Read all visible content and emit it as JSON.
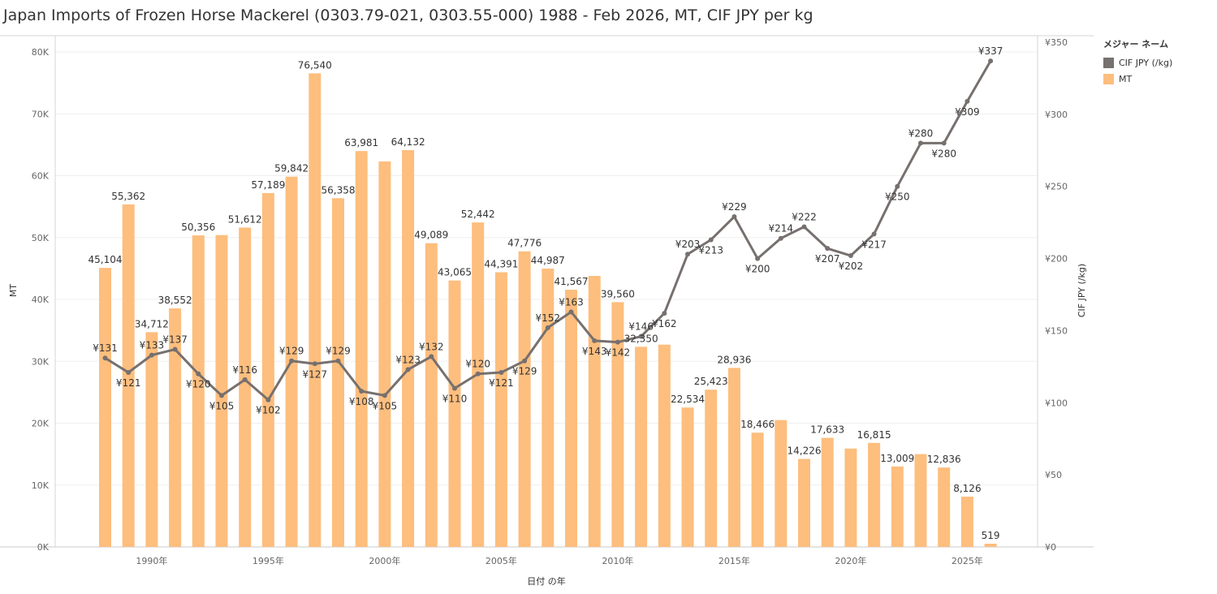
{
  "title": "Japan Imports of Frozen Horse Mackerel (0303.79-021, 0303.55-000) 1988 - Feb 2026, MT, CIF JPY per kg",
  "legend": {
    "title": "メジャー ネーム",
    "items": [
      {
        "label": "CIF JPY (/kg)",
        "color": "#76706E"
      },
      {
        "label": "MT",
        "color": "#FDBE7E"
      }
    ]
  },
  "chart_data": {
    "type": "bar+line",
    "title": "Japan Imports of Frozen Horse Mackerel (0303.79-021, 0303.55-000) 1988 - Feb 2026, MT, CIF JPY per kg",
    "xlabel": "日付 の年",
    "ylabel_left": "MT",
    "ylabel_right": "CIF JPY (/kg)",
    "ylim_left": [
      0,
      80000
    ],
    "ylim_right": [
      0,
      350
    ],
    "grid": true,
    "legend_position": "top-right",
    "left_ticks": [
      "0K",
      "10K",
      "20K",
      "30K",
      "40K",
      "50K",
      "60K",
      "70K",
      "80K"
    ],
    "right_ticks": [
      "¥0",
      "¥50",
      "¥100",
      "¥150",
      "¥200",
      "¥250",
      "¥300",
      "¥350"
    ],
    "x_ticks": [
      {
        "year": 1990,
        "label": "1990年"
      },
      {
        "year": 1995,
        "label": "1995年"
      },
      {
        "year": 2000,
        "label": "2000年"
      },
      {
        "year": 2005,
        "label": "2005年"
      },
      {
        "year": 2010,
        "label": "2010年"
      },
      {
        "year": 2015,
        "label": "2015年"
      },
      {
        "year": 2020,
        "label": "2020年"
      },
      {
        "year": 2025,
        "label": "2025年"
      }
    ],
    "years": [
      1988,
      1989,
      1990,
      1991,
      1992,
      1993,
      1994,
      1995,
      1996,
      1997,
      1998,
      1999,
      2000,
      2001,
      2002,
      2003,
      2004,
      2005,
      2006,
      2007,
      2008,
      2009,
      2010,
      2011,
      2012,
      2013,
      2014,
      2015,
      2016,
      2017,
      2018,
      2019,
      2020,
      2021,
      2022,
      2023,
      2024,
      2025,
      2026
    ],
    "series": [
      {
        "name": "MT",
        "color": "#FDBE7E",
        "values": [
          45104,
          55362,
          34712,
          38552,
          50356,
          50400,
          51612,
          57189,
          59842,
          76540,
          56358,
          63981,
          62300,
          64132,
          49089,
          43065,
          52442,
          44391,
          47776,
          44987,
          41567,
          43800,
          39560,
          32350,
          32700,
          22534,
          25423,
          28936,
          18466,
          20500,
          14226,
          17633,
          15900,
          16815,
          13009,
          15000,
          12836,
          8126,
          519
        ],
        "labels": [
          "45,104",
          "55,362",
          "34,712",
          "38,552",
          "50,356",
          "",
          "51,612",
          "57,189",
          "59,842",
          "76,540",
          "56,358",
          "63,981",
          "",
          "64,132",
          "49,089",
          "43,065",
          "52,442",
          "44,391",
          "47,776",
          "44,987",
          "41,567",
          "",
          "39,560",
          "32,350",
          "",
          "22,534",
          "25,423",
          "28,936",
          "18,466",
          "",
          "14,226",
          "17,633",
          "",
          "16,815",
          "13,009",
          "",
          "12,836",
          "8,126",
          "519"
        ]
      },
      {
        "name": "CIF JPY (/kg)",
        "color": "#76706E",
        "values": [
          131,
          121,
          133,
          137,
          120,
          105,
          116,
          102,
          129,
          127,
          129,
          108,
          105,
          123,
          132,
          110,
          120,
          121,
          129,
          152,
          163,
          143,
          142,
          146,
          162,
          203,
          213,
          229,
          200,
          214,
          222,
          207,
          202,
          217,
          250,
          280,
          280,
          309,
          337
        ],
        "labels": [
          "¥131",
          "¥121",
          "¥133",
          "¥137",
          "¥120",
          "¥105",
          "¥116",
          "¥102",
          "¥129",
          "¥127",
          "¥129",
          "¥108",
          "¥105",
          "¥123",
          "¥132",
          "¥110",
          "¥120",
          "¥121",
          "¥129",
          "¥152",
          "¥163",
          "¥143",
          "¥142",
          "¥146",
          "¥162",
          "¥203",
          "¥213",
          "¥229",
          "¥200",
          "¥214",
          "¥222",
          "¥207",
          "¥202",
          "¥217",
          "¥250",
          "¥280",
          "¥280",
          "¥309",
          "¥337"
        ],
        "label_pos": [
          "above",
          "below",
          "above",
          "above",
          "below",
          "below",
          "above",
          "below",
          "above",
          "below",
          "above",
          "below",
          "below",
          "above",
          "above",
          "below",
          "above",
          "below",
          "below",
          "above",
          "above",
          "below",
          "below",
          "above",
          "below",
          "above",
          "below",
          "above",
          "below",
          "above",
          "above",
          "below",
          "below",
          "below",
          "below",
          "above",
          "below",
          "below",
          "above"
        ]
      }
    ]
  }
}
